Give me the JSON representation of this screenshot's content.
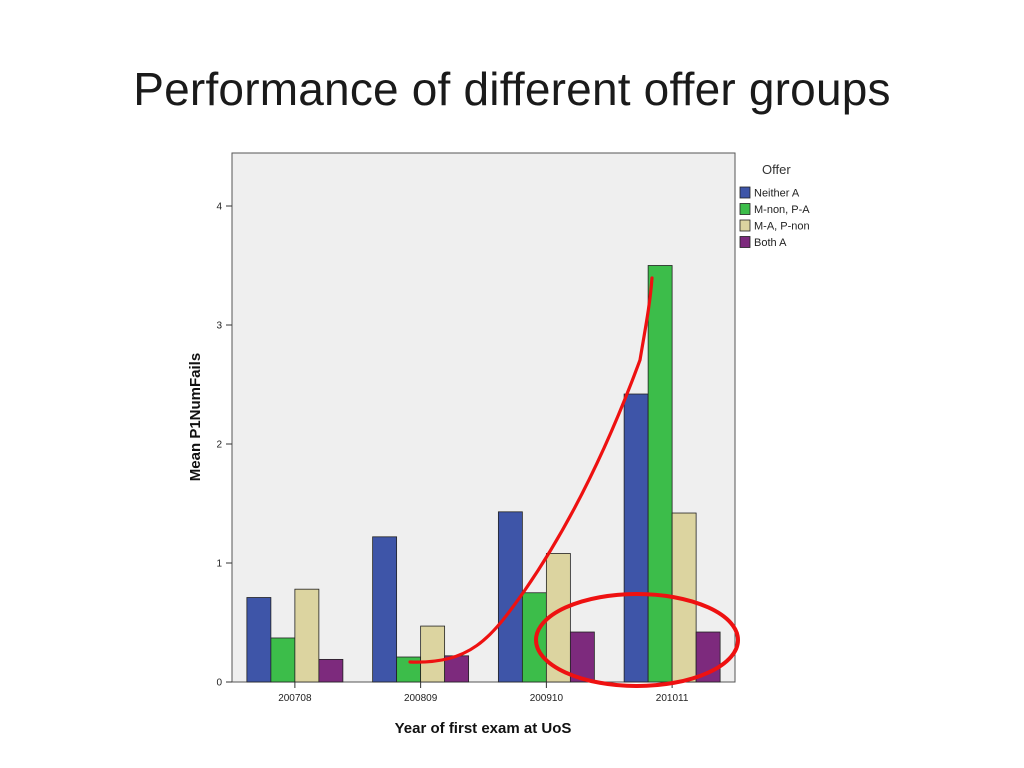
{
  "slide": {
    "title": "Performance of different offer groups"
  },
  "chart_data": {
    "type": "bar",
    "title": "",
    "xlabel": "Year of first exam at UoS",
    "ylabel": "Mean P1NumFails",
    "ylim": [
      0,
      4.4
    ],
    "yticks": [
      0,
      1,
      2,
      3,
      4
    ],
    "categories": [
      "200708",
      "200809",
      "200910",
      "201011"
    ],
    "legend_title": "Offer",
    "legend_position": "right",
    "grid": false,
    "series": [
      {
        "name": "Neither A",
        "color": "#3e55a8",
        "values": [
          0.71,
          1.22,
          1.43,
          2.42
        ]
      },
      {
        "name": "M-non, P-A",
        "color": "#3cbd4a",
        "values": [
          0.37,
          0.21,
          0.75,
          3.5
        ]
      },
      {
        "name": "M-A, P-non",
        "color": "#dcd4a0",
        "values": [
          0.78,
          0.47,
          1.08,
          1.42
        ]
      },
      {
        "name": "Both A",
        "color": "#7d2a7d",
        "values": [
          0.19,
          0.22,
          0.42,
          0.42
        ]
      }
    ],
    "annotations": {
      "trend_curve_color": "#ee1111",
      "highlight_ellipse_color": "#ee1111"
    }
  }
}
